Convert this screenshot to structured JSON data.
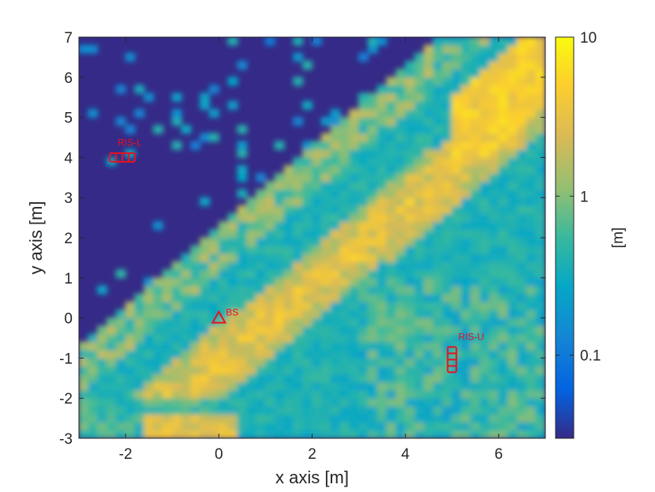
{
  "chart_data": {
    "type": "heatmap",
    "title": "",
    "xlabel": "x axis [m]",
    "ylabel": "y axis [m]",
    "xlim": [
      -3,
      7
    ],
    "ylim": [
      -3,
      7
    ],
    "x_ticks": [
      -2,
      0,
      2,
      4,
      6
    ],
    "y_ticks": [
      -3,
      -2,
      -1,
      0,
      1,
      2,
      3,
      4,
      5,
      6,
      7
    ],
    "x_tick_labels": [
      "-2",
      "0",
      "2",
      "4",
      "6"
    ],
    "y_tick_labels": [
      "-3",
      "-2",
      "-1",
      "0",
      "1",
      "2",
      "3",
      "4",
      "5",
      "6",
      "7"
    ],
    "colorbar": {
      "label": "[m]",
      "scale": "log",
      "range": [
        0.03,
        10
      ],
      "ticks": [
        0.1,
        1,
        10
      ],
      "tick_labels": [
        "0.1",
        "1",
        "10"
      ],
      "colormap": "parula"
    },
    "value_description": "Near-zero region (dark blue) upper-left of the line y = x + 2; high values (~3-10) along a diagonal band roughly from (-1,-3) to (7,6); moderate values (~0.1-1) in the lower-right region.",
    "markers": [
      {
        "name": "BS",
        "shape": "triangle",
        "x": 0,
        "y": 0,
        "color": "#e8121e"
      },
      {
        "name": "RIS-L",
        "shape": "horizontal-array",
        "x": -2,
        "y": 4,
        "elements": 4,
        "color": "#e8121e"
      },
      {
        "name": "RIS-U",
        "shape": "vertical-array",
        "x": 5,
        "y": -1,
        "elements": 4,
        "color": "#e8121e"
      }
    ]
  }
}
